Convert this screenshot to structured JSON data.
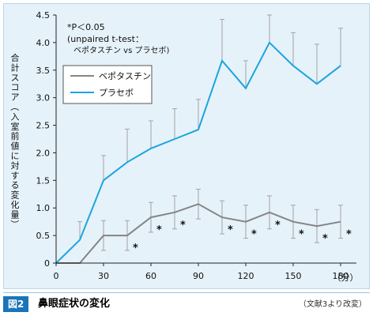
{
  "figure": {
    "tag": "図2",
    "title": "鼻眼症状の変化",
    "source": "（文献3より改変）"
  },
  "colors": {
    "bepotastine": "#858585",
    "placebo": "#1aa5df",
    "errorbar": "#a3a3a3",
    "axis": "#222222",
    "frame_bg": "#e6f2f9"
  },
  "chart_data": {
    "type": "line",
    "title": "",
    "xlabel": "（分）",
    "ylabel": "合計スコア（入室前値に対する変化量）",
    "xlim": [
      0,
      190
    ],
    "ylim": [
      0,
      4.5
    ],
    "xticks": [
      0,
      30,
      60,
      90,
      120,
      150,
      180
    ],
    "xtick_labels": [
      "0",
      "30",
      "60",
      "90",
      "120",
      "150",
      "180"
    ],
    "yticks": [
      0,
      0.5,
      1.0,
      1.5,
      2.0,
      2.5,
      3.0,
      3.5,
      4.0,
      4.5
    ],
    "ytick_labels": [
      "0",
      "0.5",
      "1.0",
      "1.5",
      "2.0",
      "2.5",
      "3.0",
      "3.5",
      "4.0",
      "4.5"
    ],
    "grid": false,
    "legend_position": "upper-left",
    "annotation": {
      "lines": [
        "*P＜0.05",
        "(unpaired t-test：",
        "ベポタスチン vs プラセボ)"
      ]
    },
    "series": [
      {
        "name": "ベポタスチン",
        "color": "#858585",
        "points": [
          {
            "x": 0,
            "y": 0,
            "err": 0
          },
          {
            "x": 15,
            "y": 0,
            "err": 0
          },
          {
            "x": 30,
            "y": 0.5,
            "err": 0.27
          },
          {
            "x": 45,
            "y": 0.5,
            "err": 0.27
          },
          {
            "x": 60,
            "y": 0.83,
            "err": 0.27
          },
          {
            "x": 75,
            "y": 0.92,
            "err": 0.3
          },
          {
            "x": 90,
            "y": 1.07,
            "err": 0.27
          },
          {
            "x": 105,
            "y": 0.83,
            "err": 0.3
          },
          {
            "x": 120,
            "y": 0.75,
            "err": 0.3
          },
          {
            "x": 135,
            "y": 0.92,
            "err": 0.3
          },
          {
            "x": 150,
            "y": 0.75,
            "err": 0.3
          },
          {
            "x": 165,
            "y": 0.67,
            "err": 0.3
          },
          {
            "x": 180,
            "y": 0.75,
            "err": 0.3
          }
        ],
        "significance_x": [
          45,
          60,
          75,
          105,
          120,
          135,
          150,
          165,
          180
        ],
        "significance_mark": "*"
      },
      {
        "name": "プラセボ",
        "color": "#1aa5df",
        "points": [
          {
            "x": 0,
            "y": 0,
            "err": 0
          },
          {
            "x": 15,
            "y": 0.42,
            "err": 0.33
          },
          {
            "x": 30,
            "y": 1.5,
            "err": 0.45
          },
          {
            "x": 45,
            "y": 1.83,
            "err": 0.6
          },
          {
            "x": 60,
            "y": 2.08,
            "err": 0.5
          },
          {
            "x": 75,
            "y": 2.25,
            "err": 0.55
          },
          {
            "x": 90,
            "y": 2.42,
            "err": 0.55
          },
          {
            "x": 105,
            "y": 3.67,
            "err": 0.75
          },
          {
            "x": 120,
            "y": 3.17,
            "err": 0.5
          },
          {
            "x": 135,
            "y": 4.0,
            "err": 0.5
          },
          {
            "x": 150,
            "y": 3.58,
            "err": 0.6
          },
          {
            "x": 165,
            "y": 3.25,
            "err": 0.72
          },
          {
            "x": 180,
            "y": 3.58,
            "err": 0.68
          }
        ]
      }
    ]
  }
}
